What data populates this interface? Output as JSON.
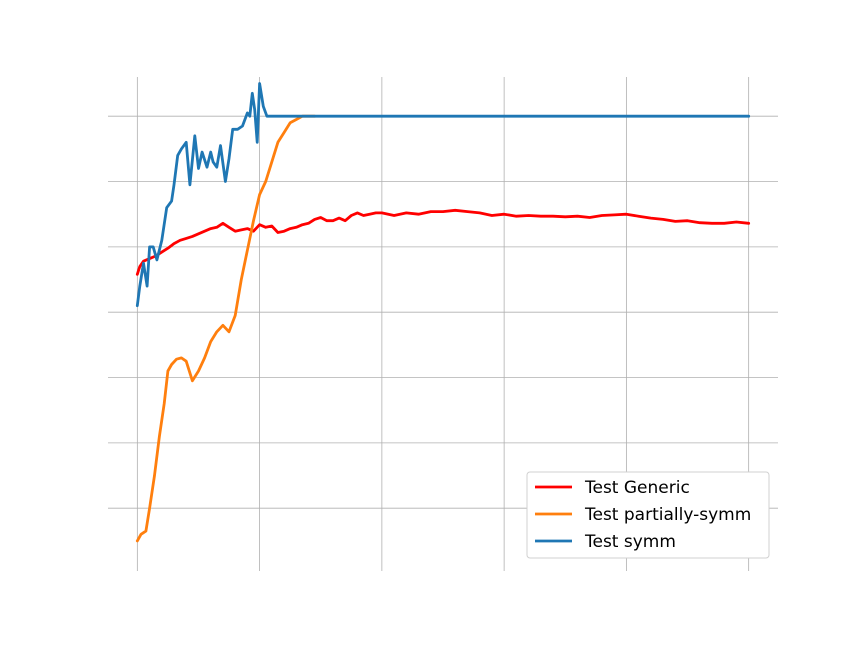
{
  "chart_data": {
    "type": "line",
    "title": "",
    "xlabel": "",
    "ylabel": "",
    "xlim": [
      -0.24,
      5.24
    ],
    "ylim": [
      -0.4,
      7.1
    ],
    "x_gridlines": [
      0,
      1,
      2,
      3,
      4,
      5
    ],
    "y_gridlines": [
      0.5,
      1.5,
      2.5,
      3.5,
      4.5,
      5.5,
      6.5
    ],
    "x_ticks": [
      0,
      1,
      2,
      3,
      4,
      5
    ],
    "grid": true,
    "legend_position": "lower-right",
    "series": [
      {
        "name": "Test Generic",
        "color": "#ff0000",
        "x": [
          0.0,
          0.02,
          0.05,
          0.1,
          0.15,
          0.2,
          0.25,
          0.3,
          0.35,
          0.4,
          0.45,
          0.5,
          0.55,
          0.6,
          0.65,
          0.7,
          0.75,
          0.8,
          0.85,
          0.9,
          0.95,
          1.0,
          1.05,
          1.1,
          1.15,
          1.2,
          1.25,
          1.3,
          1.35,
          1.4,
          1.45,
          1.5,
          1.55,
          1.6,
          1.65,
          1.7,
          1.75,
          1.8,
          1.85,
          1.9,
          1.95,
          2.0,
          2.1,
          2.2,
          2.3,
          2.4,
          2.5,
          2.6,
          2.7,
          2.8,
          2.9,
          3.0,
          3.1,
          3.2,
          3.3,
          3.4,
          3.5,
          3.6,
          3.7,
          3.8,
          3.9,
          4.0,
          4.1,
          4.2,
          4.3,
          4.4,
          4.5,
          4.6,
          4.7,
          4.8,
          4.9,
          5.0
        ],
        "values": [
          4.08,
          4.2,
          4.28,
          4.32,
          4.36,
          4.42,
          4.48,
          4.55,
          4.6,
          4.63,
          4.66,
          4.7,
          4.74,
          4.78,
          4.8,
          4.86,
          4.8,
          4.74,
          4.76,
          4.78,
          4.74,
          4.84,
          4.8,
          4.82,
          4.72,
          4.74,
          4.78,
          4.8,
          4.84,
          4.86,
          4.92,
          4.95,
          4.9,
          4.9,
          4.94,
          4.9,
          4.98,
          5.02,
          4.98,
          5.0,
          5.02,
          5.02,
          4.98,
          5.02,
          5.0,
          5.04,
          5.04,
          5.06,
          5.04,
          5.02,
          4.98,
          5.0,
          4.97,
          4.98,
          4.97,
          4.97,
          4.96,
          4.97,
          4.95,
          4.98,
          4.99,
          5.0,
          4.97,
          4.94,
          4.92,
          4.89,
          4.9,
          4.87,
          4.86,
          4.86,
          4.88,
          4.86
        ]
      },
      {
        "name": "Test partially-symm",
        "color": "#ff7f0e",
        "x": [
          0.0,
          0.03,
          0.07,
          0.1,
          0.14,
          0.18,
          0.22,
          0.25,
          0.28,
          0.32,
          0.36,
          0.4,
          0.45,
          0.5,
          0.55,
          0.6,
          0.65,
          0.7,
          0.75,
          0.8,
          0.85,
          0.9,
          0.95,
          1.0,
          1.05,
          1.1,
          1.15,
          1.2,
          1.25,
          1.3,
          1.35,
          1.4,
          1.45
        ],
        "values": [
          0.0,
          0.1,
          0.15,
          0.5,
          1.0,
          1.6,
          2.1,
          2.6,
          2.7,
          2.78,
          2.8,
          2.75,
          2.45,
          2.6,
          2.8,
          3.05,
          3.2,
          3.3,
          3.2,
          3.45,
          4.0,
          4.45,
          4.9,
          5.3,
          5.5,
          5.8,
          6.1,
          6.25,
          6.4,
          6.45,
          6.5,
          6.5,
          6.5
        ]
      },
      {
        "name": "Test symm",
        "color": "#1f77b4",
        "x": [
          0.0,
          0.02,
          0.05,
          0.08,
          0.1,
          0.13,
          0.16,
          0.2,
          0.24,
          0.28,
          0.3,
          0.33,
          0.36,
          0.4,
          0.43,
          0.47,
          0.5,
          0.53,
          0.57,
          0.6,
          0.62,
          0.65,
          0.68,
          0.72,
          0.75,
          0.78,
          0.82,
          0.86,
          0.9,
          0.92,
          0.94,
          0.96,
          0.98,
          1.0,
          1.03,
          1.06,
          1.08,
          1.1,
          1.2,
          1.5,
          2.0,
          3.0,
          4.0,
          5.0
        ],
        "values": [
          3.6,
          3.9,
          4.25,
          3.9,
          4.5,
          4.5,
          4.3,
          4.6,
          5.1,
          5.2,
          5.45,
          5.9,
          6.0,
          6.1,
          5.45,
          6.2,
          5.7,
          5.95,
          5.72,
          5.95,
          5.8,
          5.72,
          6.05,
          5.5,
          5.85,
          6.3,
          6.3,
          6.35,
          6.55,
          6.5,
          6.85,
          6.6,
          6.1,
          7.0,
          6.65,
          6.5,
          6.5,
          6.5,
          6.5,
          6.5,
          6.5,
          6.5,
          6.5,
          6.5
        ]
      }
    ]
  }
}
